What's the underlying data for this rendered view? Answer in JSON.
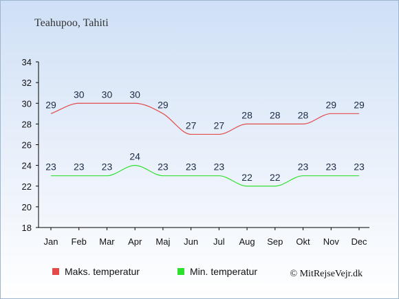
{
  "chart_data": {
    "type": "line",
    "title": "Teahupoo, Tahiti",
    "categories": [
      "Jan",
      "Feb",
      "Mar",
      "Apr",
      "Maj",
      "Jun",
      "Jul",
      "Aug",
      "Sep",
      "Okt",
      "Nov",
      "Dec"
    ],
    "series": [
      {
        "name": "Maks. temperatur",
        "values": [
          29,
          30,
          30,
          30,
          29,
          27,
          27,
          28,
          28,
          28,
          29,
          29
        ],
        "color": "#e34a4a"
      },
      {
        "name": "Min. temperatur",
        "values": [
          23,
          23,
          23,
          24,
          23,
          23,
          23,
          22,
          22,
          23,
          23,
          23
        ],
        "color": "#2ee02e"
      }
    ],
    "ylim": [
      18,
      34
    ],
    "yticks": [
      18,
      20,
      22,
      24,
      26,
      28,
      30,
      32,
      34
    ],
    "grid": false,
    "legend_position": "bottom"
  },
  "credit": "© MitRejseVejr.dk"
}
